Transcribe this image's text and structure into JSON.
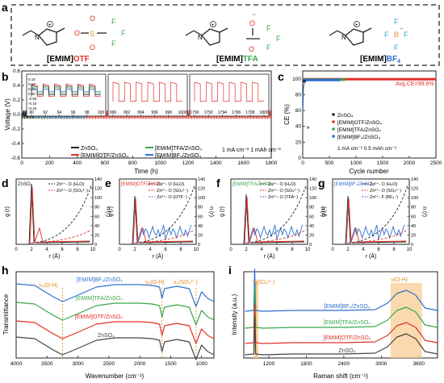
{
  "colors": {
    "black": "#222222",
    "red": "#e0302a",
    "green": "#3aa64a",
    "blue": "#2f6fd0",
    "orange": "#e08a1a",
    "gray": "#444444",
    "cyan": "#2aa7c9",
    "shade": "#f6c98a"
  },
  "panels": {
    "a": {
      "letter": "a",
      "molecules": [
        {
          "name_prefix": "[EMIM]",
          "anion": "OTF",
          "anion_color": "#e0302a"
        },
        {
          "name_prefix": "[EMIM]",
          "anion": "TFA",
          "anion_color": "#3aa64a"
        },
        {
          "name_prefix": "[EMIM]",
          "anion": "BF",
          "anion_sub": "4",
          "anion_color": "#2f6fd0"
        }
      ],
      "atoms": {
        "O": "O",
        "S": "S",
        "F": "F",
        "N": "N",
        "B": "B",
        "plus": "+",
        "minus": "−"
      }
    },
    "b": {
      "letter": "b",
      "ylabel": "Voltage (V)",
      "xlabel": "Time (h)",
      "condition": "1 mA cm⁻² 1 mAh cm⁻²",
      "legend": [
        {
          "label": "ZnSO₄",
          "color": "#222222"
        },
        {
          "label": "[EMIM]OTF/ZnSO₄",
          "color": "#e0302a"
        },
        {
          "label": "[EMIM]TFA/ZnSO₄",
          "color": "#3aa64a"
        },
        {
          "label": "[EMIM]BF₄/ZnSO₄",
          "color": "#2f6fd0"
        }
      ],
      "insets": [
        {
          "xticks": [
            "90",
            "92",
            "94",
            "96",
            "98",
            "100"
          ]
        },
        {
          "xticks": [
            "990",
            "992",
            "994",
            "996",
            "998",
            "1000"
          ]
        },
        {
          "xticks": [
            "1790",
            "1792",
            "1794",
            "1796",
            "1798",
            "1800"
          ]
        }
      ]
    },
    "c": {
      "letter": "c",
      "ylabel": "CE (%)",
      "xlabel": "Cycle number",
      "avg_label": "Avg.CE=99.6%",
      "condition": "1 mA cm⁻² 0.5 mAh cm⁻²",
      "legend": [
        {
          "label": "ZnSO₄",
          "color": "#222222"
        },
        {
          "label": "[EMIM]OTF/ZnSO₄",
          "color": "#e0302a"
        },
        {
          "label": "[EMIM]TFA/ZnSO₄",
          "color": "#3aa64a"
        },
        {
          "label": "[EMIM]BF₄/ZnSO₄",
          "color": "#2f6fd0"
        }
      ],
      "star": "*"
    },
    "rdf": {
      "ylabel_left": "g (r)",
      "ylabel_right": "n (r)",
      "xlabel": "r (Å)",
      "items": [
        {
          "letter": "d",
          "title": "ZnSO₄",
          "title_color": "#222222",
          "legend": [
            {
              "label": "Zn²⁺- O (H₂O)",
              "color": "#222222"
            },
            {
              "label": "Zn²⁺- O (SO₄²⁻)",
              "color": "#e0302a"
            }
          ]
        },
        {
          "letter": "e",
          "title": "[EMIM]OTF/ZnSO₄",
          "title_color": "#e0302a",
          "legend": [
            {
              "label": "Zn²⁺- O (H₂O)",
              "color": "#222222"
            },
            {
              "label": "Zn²⁺- O (SO₄²⁻)",
              "color": "#e0302a"
            },
            {
              "label": "Zn²⁺- O (OTF⁻)",
              "color": "#2f6fd0"
            }
          ]
        },
        {
          "letter": "f",
          "title": "[EMIM]TFA/ZnSO₄",
          "title_color": "#3aa64a",
          "legend": [
            {
              "label": "Zn²⁺- O (H₂O)",
              "color": "#222222"
            },
            {
              "label": "Zn²⁺- O (SO₄²⁻)",
              "color": "#e0302a"
            },
            {
              "label": "Zn²⁺- O (TFA⁻)",
              "color": "#2f6fd0"
            }
          ]
        },
        {
          "letter": "g",
          "title": "[EMIM]BF₄/ZnSO₄",
          "title_color": "#2f6fd0",
          "legend": [
            {
              "label": "Zn²⁺- O (H₂O)",
              "color": "#222222"
            },
            {
              "label": "Zn²⁺- O (SO₄²⁻)",
              "color": "#e0302a"
            },
            {
              "label": "Zn²⁺- F (BF₄⁻)",
              "color": "#2f6fd0"
            }
          ]
        }
      ]
    },
    "h": {
      "letter": "h",
      "ylabel": "Transmittance",
      "xlabel": "Wavenumber (cm⁻¹)",
      "annotations": [
        "νₛ(O-H)",
        "νₛ(O-H)",
        "νₛ(SO₄²⁻)"
      ],
      "curve_labels": [
        {
          "label": "[EMIM]BF₄/ZnSO₄",
          "color": "#2f6fd0"
        },
        {
          "label": "[EMIM]TFA/ZnSO₄",
          "color": "#3aa64a"
        },
        {
          "label": "[EMIM]OTF/ZnSO₄",
          "color": "#e0302a"
        },
        {
          "label": "ZnSO₄",
          "color": "#444444"
        }
      ]
    },
    "i": {
      "letter": "i",
      "ylabel": "Intensity (a.u.)",
      "xlabel": "Raman shift (cm⁻¹)",
      "annotations": [
        "ν(SO₄²⁻)",
        "ν(O-H)"
      ],
      "curve_labels": [
        {
          "label": "[EMIM]BF₄/ZnSO₄",
          "color": "#2f6fd0"
        },
        {
          "label": "[EMIM]TFA/ZnSO₄",
          "color": "#3aa64a"
        },
        {
          "label": "[EMIM]OTF/ZnSO₄",
          "color": "#e0302a"
        },
        {
          "label": "ZnSO₄",
          "color": "#444444"
        }
      ]
    }
  },
  "chart_data": [
    {
      "panel": "b",
      "type": "line",
      "xlabel": "Time (h)",
      "ylabel": "Voltage (V)",
      "xlim": [
        0,
        1800
      ],
      "ylim": [
        -0.6,
        0.6
      ],
      "xticks": [
        0,
        200,
        400,
        600,
        800,
        1000,
        1200,
        1400,
        1600,
        1800
      ],
      "yticks": [
        -0.6,
        -0.4,
        -0.2,
        0.0,
        0.2,
        0.4,
        0.6
      ],
      "series": [
        {
          "name": "ZnSO₄",
          "x_range": [
            0,
            90
          ],
          "amplitude": 0.05
        },
        {
          "name": "[EMIM]OTF/ZnSO₄",
          "x_range": [
            0,
            1800
          ],
          "amplitude": 0.06
        },
        {
          "name": "[EMIM]TFA/ZnSO₄",
          "x_range": [
            0,
            440
          ],
          "amplitude": 0.06
        },
        {
          "name": "[EMIM]BF₄/ZnSO₄",
          "x_range": [
            0,
            470
          ],
          "amplitude": 0.05
        }
      ]
    },
    {
      "panel": "c",
      "type": "scatter",
      "xlabel": "Cycle number",
      "ylabel": "CE (%)",
      "xlim": [
        0,
        2500
      ],
      "ylim": [
        0,
        110
      ],
      "xticks": [
        0,
        500,
        1000,
        1500,
        2000,
        2500
      ],
      "yticks": [
        0,
        20,
        40,
        60,
        80,
        100
      ],
      "series": [
        {
          "name": "ZnSO₄",
          "x_range": [
            0,
            60
          ],
          "ce": 97
        },
        {
          "name": "[EMIM]OTF/ZnSO₄",
          "x_range": [
            0,
            2500
          ],
          "ce": 99.6
        },
        {
          "name": "[EMIM]TFA/ZnSO₄",
          "x_range": [
            0,
            800
          ],
          "ce": 99
        },
        {
          "name": "[EMIM]BF₄/ZnSO₄",
          "x_range": [
            0,
            700
          ],
          "ce": 98.5
        }
      ]
    },
    {
      "panel": "d-g",
      "type": "line",
      "xlabel": "r (Å)",
      "ylabel_left": "g (r)",
      "ylabel_right": "n (r)",
      "xlim": [
        0,
        10
      ],
      "ylim_left": [
        0,
        140
      ],
      "ylim_right": [
        0,
        140
      ],
      "xticks": [
        0,
        2,
        4,
        6,
        8,
        10
      ],
      "yticks_right": [
        0,
        20,
        40,
        60,
        80,
        100,
        120,
        140
      ],
      "first_peak_r": 2.0
    },
    {
      "panel": "h",
      "type": "line",
      "xlabel": "Wavenumber (cm⁻¹)",
      "ylabel": "Transmittance",
      "xlim": [
        4000,
        800
      ],
      "xticks": [
        4000,
        3500,
        3000,
        2500,
        2000,
        1500,
        1000
      ],
      "markers_cm": [
        3250,
        1640,
        1090
      ],
      "series": [
        {
          "name": "[EMIM]BF₄/ZnSO₄"
        },
        {
          "name": "[EMIM]TFA/ZnSO₄"
        },
        {
          "name": "[EMIM]OTF/ZnSO₄"
        },
        {
          "name": "ZnSO₄"
        }
      ]
    },
    {
      "panel": "i",
      "type": "line",
      "xlabel": "Raman shift (cm⁻¹)",
      "ylabel": "Intensity (a.u.)",
      "xlim": [
        800,
        3900
      ],
      "xticks": [
        1200,
        1800,
        2400,
        3000,
        3600
      ],
      "markers_cm": [
        980,
        3400
      ],
      "series": [
        {
          "name": "[EMIM]BF₄/ZnSO₄"
        },
        {
          "name": "[EMIM]TFA/ZnSO₄"
        },
        {
          "name": "[EMIM]OTF/ZnSO₄"
        },
        {
          "name": "ZnSO₄"
        }
      ]
    }
  ]
}
